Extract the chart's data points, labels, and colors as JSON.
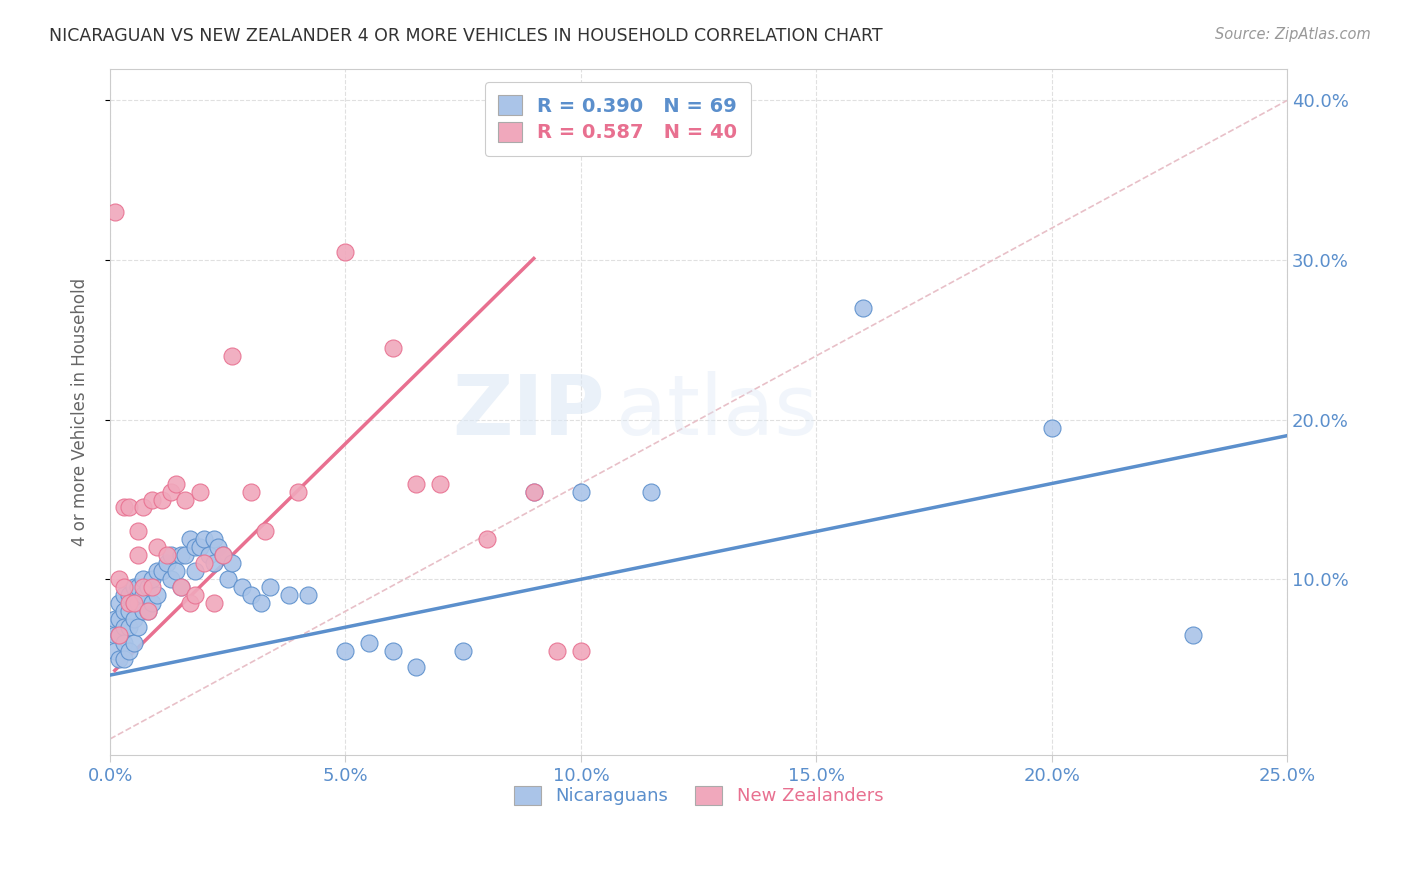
{
  "title": "NICARAGUAN VS NEW ZEALANDER 4 OR MORE VEHICLES IN HOUSEHOLD CORRELATION CHART",
  "source": "Source: ZipAtlas.com",
  "xlabel_ticks": [
    "0.0%",
    "5.0%",
    "10.0%",
    "15.0%",
    "20.0%",
    "25.0%"
  ],
  "ylabel_ticks": [
    "10.0%",
    "20.0%",
    "30.0%",
    "40.0%"
  ],
  "xlim": [
    0.0,
    0.25
  ],
  "ylim": [
    -0.01,
    0.42
  ],
  "ylabel": "4 or more Vehicles in Household",
  "blue_color": "#5b8fcc",
  "pink_color": "#e87090",
  "blue_scatter_color": "#aac4e8",
  "pink_scatter_color": "#f0a8bc",
  "reference_line_color": "#e8c0c8",
  "blue_line_slope": 0.6,
  "blue_line_intercept": 0.04,
  "blue_line_x_start": 0.0,
  "blue_line_x_end": 0.25,
  "pink_line_slope": 2.9,
  "pink_line_intercept": 0.04,
  "pink_line_x_start": 0.001,
  "pink_line_x_end": 0.09,
  "blue_points_x": [
    0.001,
    0.001,
    0.001,
    0.002,
    0.002,
    0.002,
    0.002,
    0.003,
    0.003,
    0.003,
    0.003,
    0.003,
    0.004,
    0.004,
    0.004,
    0.004,
    0.005,
    0.005,
    0.005,
    0.005,
    0.006,
    0.006,
    0.006,
    0.007,
    0.007,
    0.007,
    0.008,
    0.008,
    0.009,
    0.009,
    0.01,
    0.01,
    0.011,
    0.012,
    0.013,
    0.013,
    0.014,
    0.015,
    0.015,
    0.016,
    0.017,
    0.018,
    0.018,
    0.019,
    0.02,
    0.021,
    0.022,
    0.022,
    0.023,
    0.024,
    0.025,
    0.026,
    0.028,
    0.03,
    0.032,
    0.034,
    0.038,
    0.042,
    0.05,
    0.055,
    0.06,
    0.065,
    0.075,
    0.09,
    0.1,
    0.115,
    0.16,
    0.2,
    0.23
  ],
  "blue_points_y": [
    0.075,
    0.065,
    0.055,
    0.085,
    0.075,
    0.065,
    0.05,
    0.09,
    0.08,
    0.07,
    0.06,
    0.05,
    0.09,
    0.08,
    0.07,
    0.055,
    0.095,
    0.085,
    0.075,
    0.06,
    0.095,
    0.085,
    0.07,
    0.1,
    0.09,
    0.08,
    0.095,
    0.08,
    0.1,
    0.085,
    0.105,
    0.09,
    0.105,
    0.11,
    0.115,
    0.1,
    0.105,
    0.115,
    0.095,
    0.115,
    0.125,
    0.12,
    0.105,
    0.12,
    0.125,
    0.115,
    0.125,
    0.11,
    0.12,
    0.115,
    0.1,
    0.11,
    0.095,
    0.09,
    0.085,
    0.095,
    0.09,
    0.09,
    0.055,
    0.06,
    0.055,
    0.045,
    0.055,
    0.155,
    0.155,
    0.155,
    0.27,
    0.195,
    0.065
  ],
  "pink_points_x": [
    0.001,
    0.002,
    0.002,
    0.003,
    0.003,
    0.004,
    0.004,
    0.005,
    0.006,
    0.006,
    0.007,
    0.007,
    0.008,
    0.009,
    0.009,
    0.01,
    0.011,
    0.012,
    0.013,
    0.014,
    0.015,
    0.016,
    0.017,
    0.018,
    0.019,
    0.02,
    0.022,
    0.024,
    0.026,
    0.03,
    0.033,
    0.04,
    0.05,
    0.06,
    0.065,
    0.07,
    0.08,
    0.09,
    0.095,
    0.1
  ],
  "pink_points_y": [
    0.33,
    0.1,
    0.065,
    0.145,
    0.095,
    0.145,
    0.085,
    0.085,
    0.13,
    0.115,
    0.145,
    0.095,
    0.08,
    0.15,
    0.095,
    0.12,
    0.15,
    0.115,
    0.155,
    0.16,
    0.095,
    0.15,
    0.085,
    0.09,
    0.155,
    0.11,
    0.085,
    0.115,
    0.24,
    0.155,
    0.13,
    0.155,
    0.305,
    0.245,
    0.16,
    0.16,
    0.125,
    0.155,
    0.055,
    0.055
  ],
  "watermark_zip": "ZIP",
  "watermark_atlas": "atlas",
  "background_color": "#ffffff",
  "grid_color": "#e0e0e0"
}
